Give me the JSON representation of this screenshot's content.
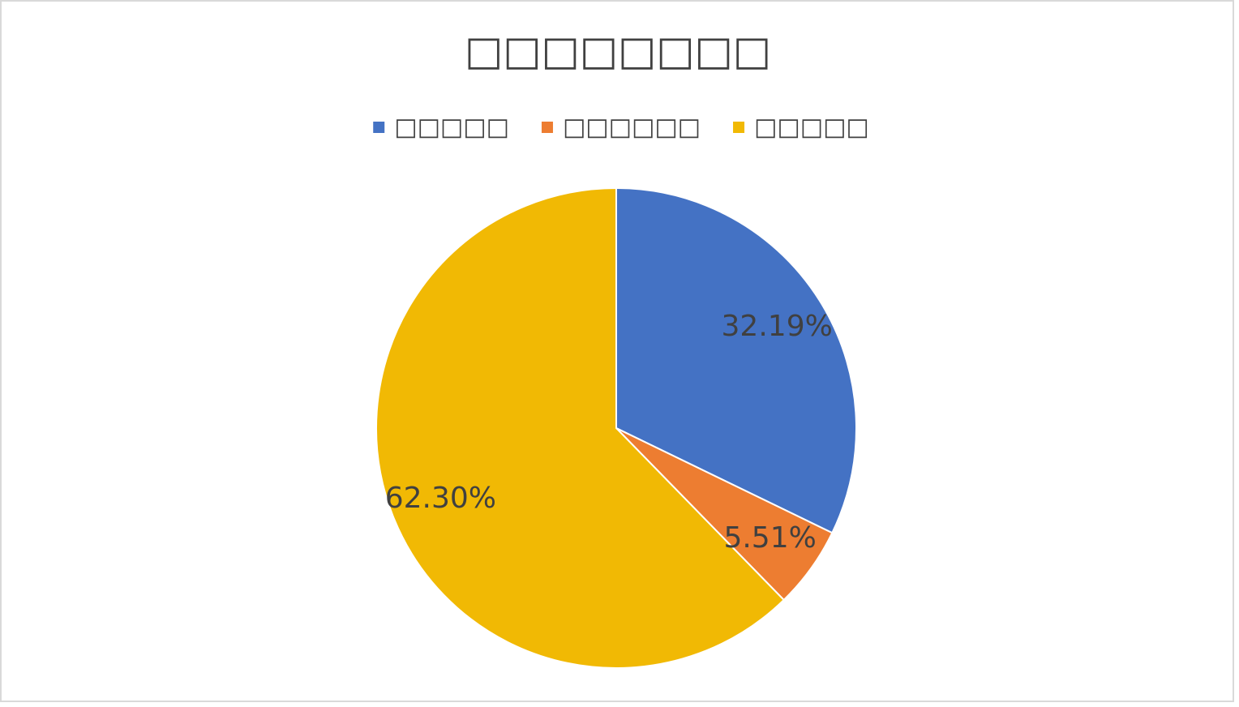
{
  "chart_data": {
    "type": "pie",
    "title": "□□□□□□□□",
    "categories": [
      "□□□□□",
      "□□□□□□",
      "□□□□□"
    ],
    "values": [
      32.19,
      5.51,
      62.3
    ],
    "value_labels": [
      "32.19%",
      "5.51%",
      "62.30%"
    ],
    "colors": [
      "#4472c4",
      "#ed7d31",
      "#f1b904"
    ],
    "legend": "top"
  }
}
